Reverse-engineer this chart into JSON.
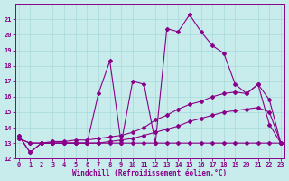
{
  "xlabel": "Windchill (Refroidissement éolien,°C)",
  "background_color": "#c8ecec",
  "grid_color": "#a8d8d8",
  "line_color": "#880088",
  "x_values": [
    0,
    1,
    2,
    3,
    4,
    5,
    6,
    7,
    8,
    9,
    10,
    11,
    12,
    13,
    14,
    15,
    16,
    17,
    18,
    19,
    20,
    21,
    22,
    23
  ],
  "line1": [
    13.5,
    12.4,
    13.0,
    13.0,
    13.0,
    13.0,
    13.0,
    16.2,
    18.3,
    13.0,
    17.0,
    16.8,
    13.0,
    20.4,
    20.2,
    21.3,
    20.2,
    19.3,
    18.8,
    16.8,
    16.2,
    16.8,
    14.2,
    13.0
  ],
  "line2": [
    13.3,
    13.0,
    13.0,
    13.1,
    13.1,
    13.2,
    13.2,
    13.3,
    13.4,
    13.5,
    13.7,
    14.0,
    14.5,
    14.8,
    15.2,
    15.5,
    15.7,
    16.0,
    16.2,
    16.3,
    16.2,
    16.8,
    15.8,
    13.0
  ],
  "line3": [
    13.3,
    13.0,
    13.0,
    13.0,
    13.0,
    13.0,
    13.0,
    13.0,
    13.1,
    13.2,
    13.3,
    13.5,
    13.7,
    13.9,
    14.1,
    14.4,
    14.6,
    14.8,
    15.0,
    15.1,
    15.2,
    15.3,
    15.0,
    13.0
  ],
  "line4": [
    13.5,
    12.4,
    13.0,
    13.0,
    13.0,
    13.0,
    13.0,
    13.0,
    13.0,
    13.0,
    13.0,
    13.0,
    13.0,
    13.0,
    13.0,
    13.0,
    13.0,
    13.0,
    13.0,
    13.0,
    13.0,
    13.0,
    13.0,
    13.0
  ],
  "ylim": [
    12,
    22
  ],
  "xlim": [
    -0.3,
    23.3
  ],
  "yticks": [
    12,
    13,
    14,
    15,
    16,
    17,
    18,
    19,
    20,
    21
  ],
  "xticks": [
    0,
    1,
    2,
    3,
    4,
    5,
    6,
    7,
    8,
    9,
    10,
    11,
    12,
    13,
    14,
    15,
    16,
    17,
    18,
    19,
    20,
    21,
    22,
    23
  ]
}
